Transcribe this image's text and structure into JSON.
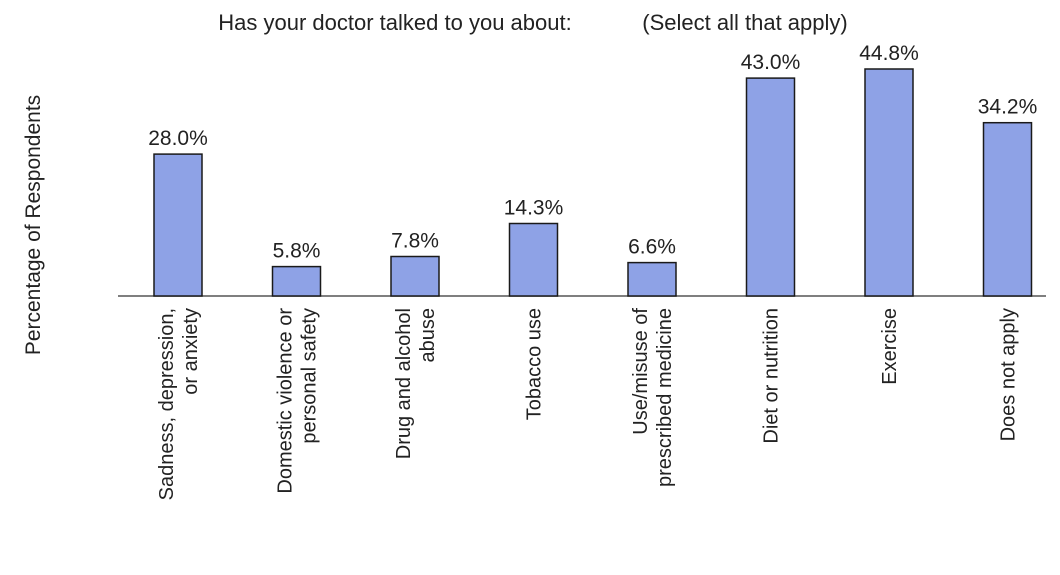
{
  "chart_data": {
    "type": "bar",
    "title": "Has your doctor talked to you about:",
    "subtitle": "(Select all that apply)",
    "ylabel": "Percentage of Respondents",
    "xlabel": "",
    "ylim": [
      0,
      45
    ],
    "grid": false,
    "legend": "none",
    "categories": [
      [
        "Sadness, depression,",
        "or anxiety"
      ],
      [
        "Domestic violence or",
        "personal safety"
      ],
      [
        "Drug and alcohol",
        "abuse"
      ],
      [
        "Tobacco use"
      ],
      [
        "Use/misuse of",
        "prescribed medicine"
      ],
      [
        "Diet or nutrition"
      ],
      [
        "Exercise"
      ],
      [
        "Does not apply"
      ]
    ],
    "values": [
      28.0,
      5.8,
      7.8,
      14.3,
      6.6,
      43.0,
      44.8,
      34.2
    ],
    "value_labels": [
      "28.0%",
      "5.8%",
      "7.8%",
      "14.3%",
      "6.6%",
      "43.0%",
      "44.8%",
      "34.2%"
    ],
    "colors": {
      "bar_fill": "#8ea2e6",
      "bar_stroke": "#1a1a1a",
      "axis": "#555555",
      "text": "#222222"
    }
  }
}
